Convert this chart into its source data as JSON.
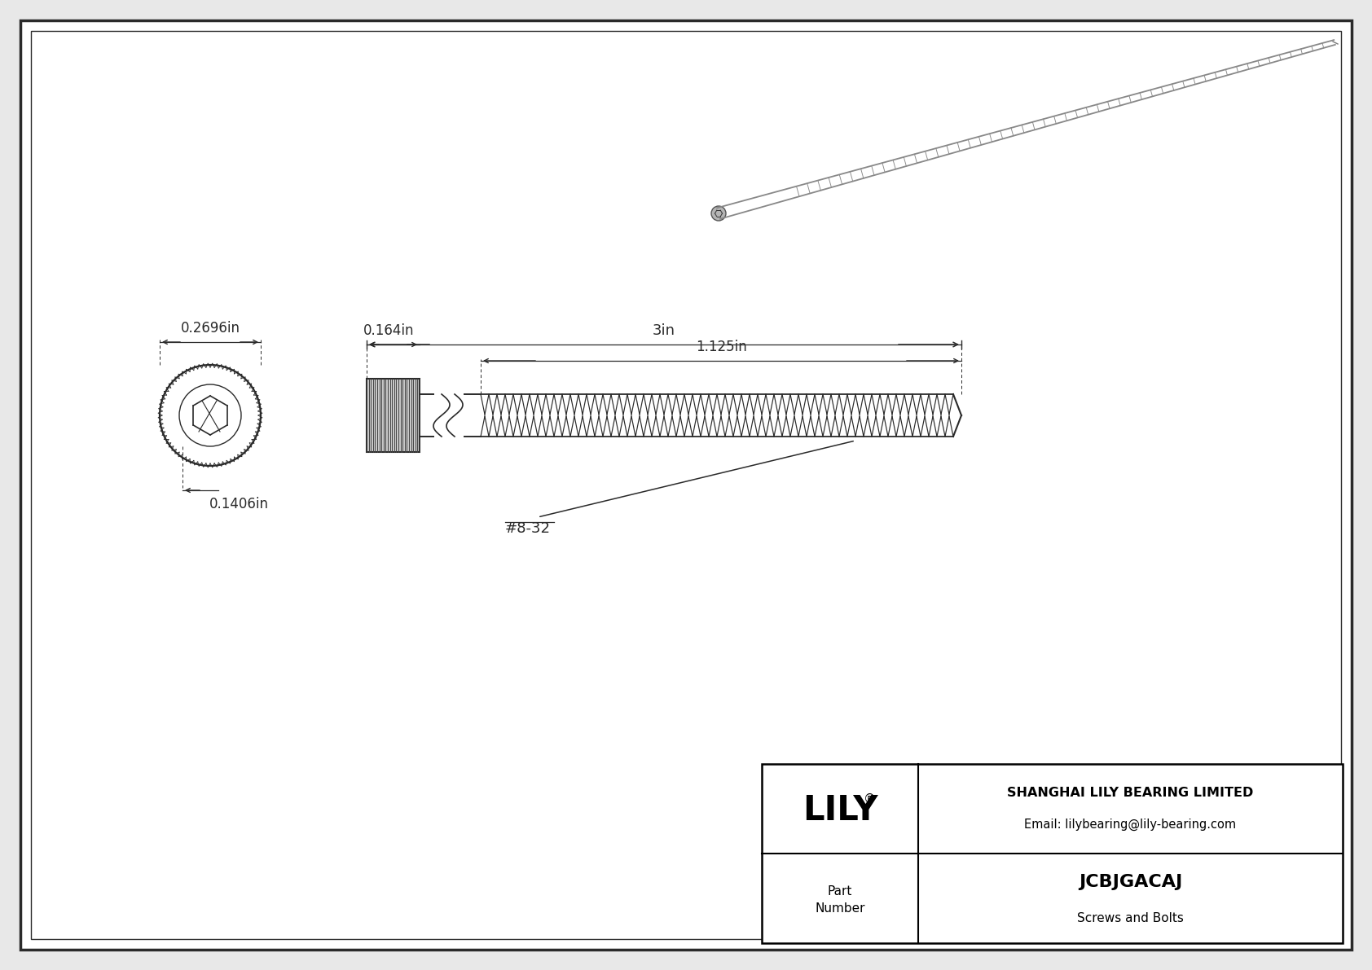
{
  "bg_color": "#e8e8e8",
  "drawing_bg": "#ffffff",
  "border_color": "#000000",
  "line_color": "#2a2a2a",
  "dim_color": "#2a2a2a",
  "title": "JCBJGACAJ",
  "subtitle": "Screws and Bolts",
  "company": "SHANGHAI LILY BEARING LIMITED",
  "email": "Email: lilybearing@lily-bearing.com",
  "dim_head_od": "0.2696in",
  "dim_head_len": "0.164in",
  "dim_shank_dia": "0.1406in",
  "dim_total_length": "3in",
  "dim_thread_length": "1.125in",
  "thread_label": "#8-32",
  "fig_width": 16.84,
  "fig_height": 11.91,
  "dpi": 100
}
